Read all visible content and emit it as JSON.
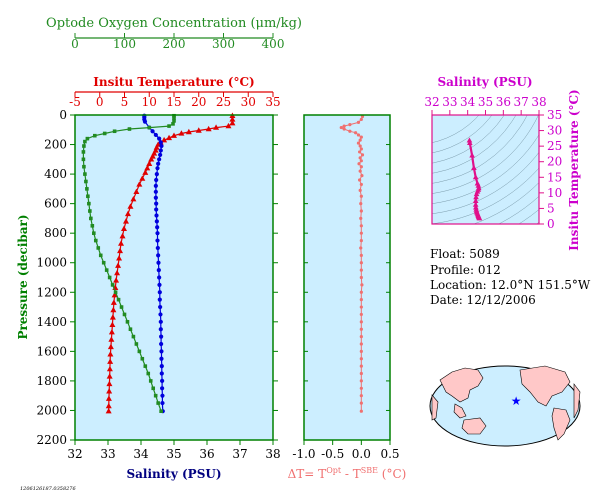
{
  "chart_data": [
    {
      "type": "line",
      "xaxes": {
        "oxygen": {
          "label": "Optode Oxygen Concentration (μm/kg)",
          "ticks": [
            0,
            100,
            200,
            300,
            400
          ],
          "range": [
            0,
            400
          ],
          "color": "#228B22"
        },
        "temperature": {
          "label": "Insitu Temperature (°C)",
          "ticks": [
            -5,
            0,
            5,
            10,
            15,
            20,
            25,
            30,
            35
          ],
          "range": [
            -5,
            35
          ],
          "color": "#e00000"
        },
        "salinity": {
          "label": "Salinity (PSU)",
          "ticks": [
            32,
            33,
            34,
            35,
            36,
            37,
            38
          ],
          "range": [
            32,
            38
          ],
          "color": "#000080"
        }
      },
      "ylabel": "Pressure (decibar)",
      "yticks": [
        0,
        200,
        400,
        600,
        800,
        1000,
        1200,
        1400,
        1600,
        1800,
        2000,
        2200
      ],
      "ylim": [
        0,
        2200
      ],
      "y_inverted": true,
      "series": [
        {
          "key": "temperature",
          "color": "#e00000",
          "marker": "triangle",
          "points": [
            [
              26.8,
              5
            ],
            [
              26.8,
              30
            ],
            [
              26.8,
              55
            ],
            [
              26.0,
              75
            ],
            [
              23.5,
              85
            ],
            [
              22.0,
              95
            ],
            [
              20.0,
              105
            ],
            [
              18.0,
              115
            ],
            [
              16.5,
              125
            ],
            [
              15.0,
              140
            ],
            [
              14.0,
              155
            ],
            [
              13.0,
              170
            ],
            [
              12.3,
              185
            ],
            [
              11.8,
              200
            ],
            [
              11.5,
              220
            ],
            [
              11.3,
              240
            ],
            [
              11.0,
              260
            ],
            [
              10.7,
              280
            ],
            [
              10.4,
              300
            ],
            [
              10.0,
              330
            ],
            [
              9.6,
              360
            ],
            [
              9.2,
              390
            ],
            [
              8.6,
              430
            ],
            [
              8.0,
              470
            ],
            [
              7.4,
              520
            ],
            [
              6.8,
              570
            ],
            [
              6.2,
              620
            ],
            [
              5.7,
              670
            ],
            [
              5.3,
              720
            ],
            [
              4.9,
              770
            ],
            [
              4.6,
              820
            ],
            [
              4.3,
              870
            ],
            [
              4.1,
              920
            ],
            [
              3.9,
              970
            ],
            [
              3.7,
              1020
            ],
            [
              3.5,
              1070
            ],
            [
              3.3,
              1120
            ],
            [
              3.15,
              1170
            ],
            [
              3.0,
              1220
            ],
            [
              2.85,
              1270
            ],
            [
              2.75,
              1320
            ],
            [
              2.65,
              1370
            ],
            [
              2.55,
              1420
            ],
            [
              2.45,
              1470
            ],
            [
              2.35,
              1520
            ],
            [
              2.25,
              1570
            ],
            [
              2.15,
              1620
            ],
            [
              2.1,
              1670
            ],
            [
              2.05,
              1720
            ],
            [
              2.0,
              1770
            ],
            [
              1.95,
              1820
            ],
            [
              1.9,
              1870
            ],
            [
              1.85,
              1920
            ],
            [
              1.82,
              1970
            ],
            [
              1.8,
              2005
            ]
          ]
        },
        {
          "key": "salinity",
          "color": "#0000dd",
          "marker": "circle",
          "points": [
            [
              34.1,
              5
            ],
            [
              34.1,
              15
            ],
            [
              34.1,
              30
            ],
            [
              34.12,
              45
            ],
            [
              34.25,
              85
            ],
            [
              34.35,
              110
            ],
            [
              34.45,
              135
            ],
            [
              34.55,
              160
            ],
            [
              34.6,
              185
            ],
            [
              34.62,
              210
            ],
            [
              34.6,
              240
            ],
            [
              34.58,
              270
            ],
            [
              34.55,
              300
            ],
            [
              34.52,
              330
            ],
            [
              34.5,
              360
            ],
            [
              34.48,
              400
            ],
            [
              34.46,
              440
            ],
            [
              34.45,
              480
            ],
            [
              34.45,
              520
            ],
            [
              34.45,
              560
            ],
            [
              34.46,
              600
            ],
            [
              34.46,
              640
            ],
            [
              34.47,
              680
            ],
            [
              34.48,
              720
            ],
            [
              34.49,
              760
            ],
            [
              34.5,
              800
            ],
            [
              34.5,
              850
            ],
            [
              34.51,
              900
            ],
            [
              34.52,
              950
            ],
            [
              34.53,
              1000
            ],
            [
              34.54,
              1050
            ],
            [
              34.55,
              1100
            ],
            [
              34.56,
              1150
            ],
            [
              34.57,
              1200
            ],
            [
              34.57,
              1250
            ],
            [
              34.58,
              1300
            ],
            [
              34.59,
              1350
            ],
            [
              34.6,
              1400
            ],
            [
              34.6,
              1450
            ],
            [
              34.61,
              1500
            ],
            [
              34.61,
              1550
            ],
            [
              34.62,
              1600
            ],
            [
              34.62,
              1650
            ],
            [
              34.63,
              1700
            ],
            [
              34.63,
              1750
            ],
            [
              34.64,
              1800
            ],
            [
              34.64,
              1850
            ],
            [
              34.65,
              1900
            ],
            [
              34.65,
              1950
            ],
            [
              34.66,
              2005
            ]
          ]
        },
        {
          "key": "oxygen",
          "color": "#228B22",
          "marker": "square",
          "points": [
            [
              200,
              5
            ],
            [
              200,
              20
            ],
            [
              200,
              40
            ],
            [
              198,
              60
            ],
            [
              190,
              75
            ],
            [
              150,
              85
            ],
            [
              110,
              95
            ],
            [
              80,
              110
            ],
            [
              60,
              125
            ],
            [
              40,
              140
            ],
            [
              25,
              160
            ],
            [
              20,
              180
            ],
            [
              18,
              210
            ],
            [
              17,
              250
            ],
            [
              17,
              300
            ],
            [
              18,
              350
            ],
            [
              20,
              400
            ],
            [
              22,
              450
            ],
            [
              24,
              500
            ],
            [
              26,
              550
            ],
            [
              28,
              600
            ],
            [
              30,
              650
            ],
            [
              32,
              700
            ],
            [
              35,
              750
            ],
            [
              38,
              800
            ],
            [
              42,
              850
            ],
            [
              47,
              900
            ],
            [
              52,
              950
            ],
            [
              58,
              1000
            ],
            [
              64,
              1050
            ],
            [
              70,
              1100
            ],
            [
              76,
              1150
            ],
            [
              82,
              1200
            ],
            [
              88,
              1250
            ],
            [
              94,
              1300
            ],
            [
              100,
              1350
            ],
            [
              106,
              1400
            ],
            [
              112,
              1450
            ],
            [
              118,
              1500
            ],
            [
              124,
              1550
            ],
            [
              130,
              1600
            ],
            [
              136,
              1650
            ],
            [
              142,
              1700
            ],
            [
              148,
              1750
            ],
            [
              153,
              1800
            ],
            [
              158,
              1850
            ],
            [
              163,
              1900
            ],
            [
              168,
              1950
            ],
            [
              174,
              2005
            ]
          ]
        }
      ]
    },
    {
      "type": "scatter",
      "xlabel": "ΔT= T^Opt - T^SBE (°C)",
      "xlabel_parts": [
        "ΔT= T",
        "Opt",
        " - T",
        "SBE",
        " (°C)"
      ],
      "xticks": [
        -1.0,
        -0.5,
        0.0,
        0.5
      ],
      "xlim": [
        -1.0,
        0.5
      ],
      "ylim": [
        0,
        2200
      ],
      "y_inverted": true,
      "color": "#f07070",
      "points": [
        [
          0.02,
          10
        ],
        [
          0.0,
          30
        ],
        [
          -0.05,
          50
        ],
        [
          -0.2,
          65
        ],
        [
          -0.3,
          75
        ],
        [
          -0.35,
          85
        ],
        [
          -0.3,
          95
        ],
        [
          -0.2,
          110
        ],
        [
          -0.1,
          120
        ],
        [
          -0.05,
          135
        ],
        [
          0.0,
          150
        ],
        [
          -0.02,
          170
        ],
        [
          -0.05,
          190
        ],
        [
          -0.02,
          210
        ],
        [
          0.0,
          230
        ],
        [
          -0.03,
          250
        ],
        [
          0.02,
          270
        ],
        [
          -0.02,
          290
        ],
        [
          0.0,
          310
        ],
        [
          -0.04,
          330
        ],
        [
          0.0,
          350
        ],
        [
          -0.02,
          380
        ],
        [
          0.01,
          410
        ],
        [
          -0.03,
          440
        ],
        [
          0.0,
          470
        ],
        [
          -0.02,
          510
        ],
        [
          0.0,
          550
        ],
        [
          -0.01,
          600
        ],
        [
          0.0,
          650
        ],
        [
          -0.01,
          700
        ],
        [
          0.0,
          750
        ],
        [
          0.0,
          800
        ],
        [
          0.0,
          850
        ],
        [
          -0.01,
          900
        ],
        [
          0.0,
          950
        ],
        [
          0.0,
          1000
        ],
        [
          0.0,
          1050
        ],
        [
          0.0,
          1100
        ],
        [
          0.01,
          1150
        ],
        [
          0.0,
          1200
        ],
        [
          0.0,
          1250
        ],
        [
          0.0,
          1300
        ],
        [
          0.0,
          1350
        ],
        [
          0.0,
          1400
        ],
        [
          0.0,
          1450
        ],
        [
          0.0,
          1500
        ],
        [
          0.0,
          1550
        ],
        [
          0.0,
          1600
        ],
        [
          0.0,
          1650
        ],
        [
          0.0,
          1700
        ],
        [
          0.0,
          1750
        ],
        [
          0.0,
          1800
        ],
        [
          0.0,
          1850
        ],
        [
          0.0,
          1900
        ],
        [
          0.0,
          1950
        ],
        [
          0.0,
          2005
        ]
      ]
    },
    {
      "type": "scatter",
      "xlabel": "Salinity (PSU)",
      "xticks": [
        32,
        33,
        34,
        35,
        36,
        37,
        38
      ],
      "xlim": [
        32,
        38
      ],
      "ylabel": "Insitu Temperature (°C)",
      "yticks": [
        0,
        5,
        10,
        15,
        20,
        25,
        30,
        35
      ],
      "ylim": [
        0,
        35
      ],
      "color": "#e0108a",
      "points": [
        [
          34.1,
          26.8
        ],
        [
          34.12,
          26
        ],
        [
          34.25,
          22
        ],
        [
          34.35,
          18
        ],
        [
          34.45,
          15
        ],
        [
          34.55,
          13
        ],
        [
          34.6,
          12.3
        ],
        [
          34.62,
          11.5
        ],
        [
          34.6,
          11
        ],
        [
          34.55,
          10.4
        ],
        [
          34.5,
          9.6
        ],
        [
          34.47,
          8.6
        ],
        [
          34.45,
          7.4
        ],
        [
          34.45,
          6.2
        ],
        [
          34.46,
          5.3
        ],
        [
          34.48,
          4.6
        ],
        [
          34.5,
          4.1
        ],
        [
          34.52,
          3.7
        ],
        [
          34.55,
          3.3
        ],
        [
          34.58,
          2.85
        ],
        [
          34.6,
          2.55
        ],
        [
          34.62,
          2.25
        ],
        [
          34.64,
          2.0
        ],
        [
          34.66,
          1.8
        ]
      ]
    }
  ],
  "float_info": {
    "float": "Float:  5089",
    "profile": "Profile:  012",
    "location": "Location:  12.0°N  151.5°W",
    "date": "Date:  12/12/2006"
  },
  "map": {
    "marker_lat": 12.0,
    "marker_lon": -151.5,
    "marker_color": "#0000ff",
    "ocean_color": "#cceeff",
    "land_color": "#ffc8c8"
  },
  "footer_id": "1206126187.0358276"
}
